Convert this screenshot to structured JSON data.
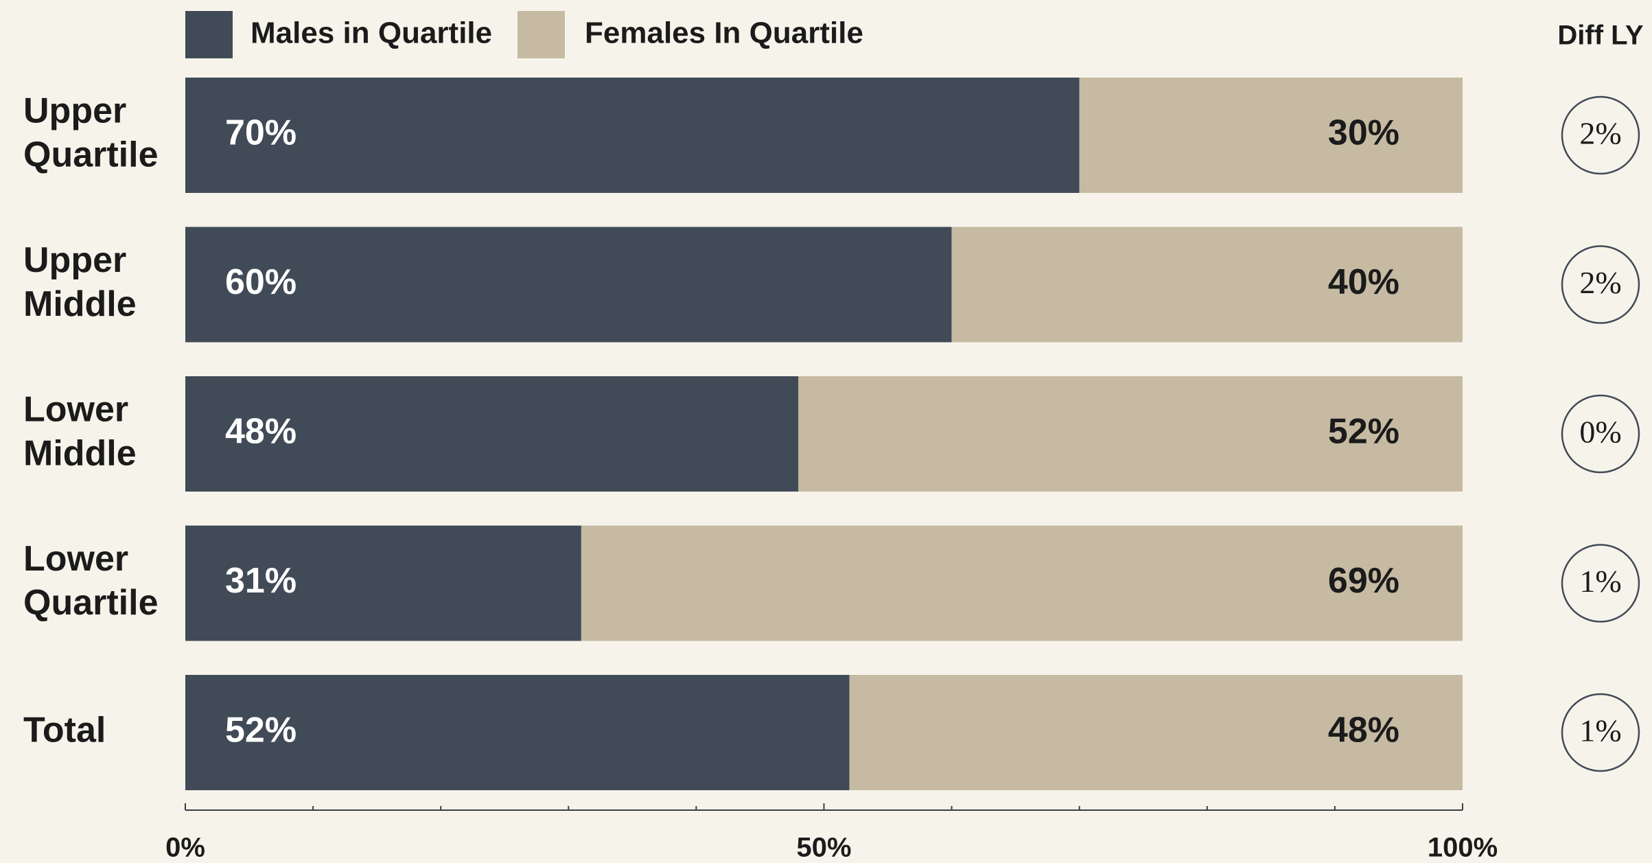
{
  "chart_data": {
    "type": "bar",
    "orientation": "horizontal",
    "stacked": true,
    "categories": [
      [
        "Upper",
        "Quartile"
      ],
      [
        "Upper",
        "Middle"
      ],
      [
        "Lower",
        "Middle"
      ],
      [
        "Lower",
        "Quartile"
      ],
      [
        "Total"
      ]
    ],
    "series": [
      {
        "name": "Males in Quartile",
        "values": [
          70,
          60,
          48,
          31,
          52
        ],
        "labels": [
          "70%",
          "60%",
          "48%",
          "31%",
          "52%"
        ],
        "color": "#414a57"
      },
      {
        "name": "Females In Quartile",
        "values": [
          30,
          40,
          52,
          69,
          48
        ],
        "labels": [
          "30%",
          "40%",
          "52%",
          "69%",
          "48%"
        ],
        "color": "#c6baa3"
      }
    ],
    "diff_header": "Diff LY",
    "diff_values": [
      "2%",
      "2%",
      "0%",
      "1%",
      "1%"
    ],
    "xlim": [
      0,
      100
    ],
    "xticks": [
      {
        "value": 0,
        "label": "0%"
      },
      {
        "value": 50,
        "label": "50%"
      },
      {
        "value": 100,
        "label": "100%"
      }
    ],
    "minor_tick_values": [
      10,
      20,
      30,
      40,
      60,
      70,
      80,
      90
    ],
    "legend_position": "top-left",
    "grid": false,
    "colors": {
      "background": "#f6f4ea",
      "axis": "#3a3f48",
      "diff_circle": "#414a57"
    }
  }
}
